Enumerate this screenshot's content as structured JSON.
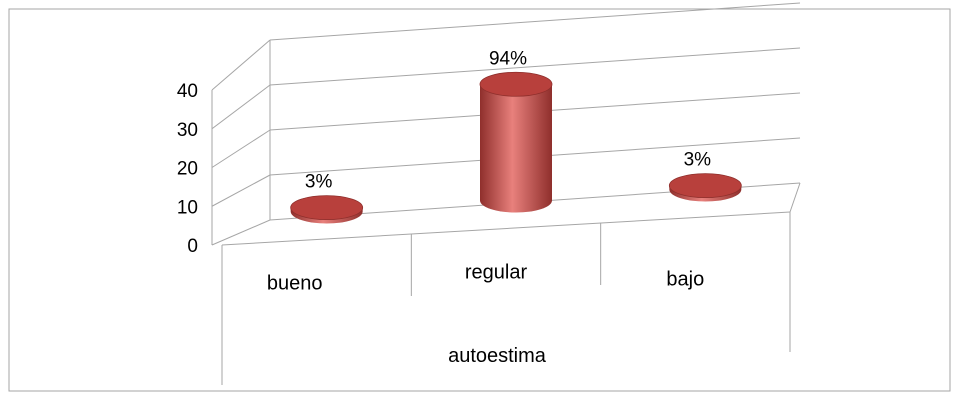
{
  "chart_data": {
    "type": "bar",
    "bar_shape": "3d-cylinder",
    "categories": [
      "bueno",
      "regular",
      "bajo"
    ],
    "series": [
      {
        "values": [
          1,
          30,
          1
        ],
        "data_labels": [
          "3%",
          "94%",
          "3%"
        ]
      }
    ],
    "xlabel": "autoestima",
    "ylabel": "",
    "ylim": [
      0,
      40
    ],
    "y_ticks": [
      0,
      10,
      20,
      30,
      40
    ],
    "grid": true,
    "legend": "none",
    "colors": {
      "bar": "#c0504d",
      "bar_light": "#e8807c",
      "bar_dark": "#8f2f2c",
      "bar_top": "#b8403c",
      "grid": "#a6a6a6",
      "frame": "#a6a6a6"
    }
  }
}
